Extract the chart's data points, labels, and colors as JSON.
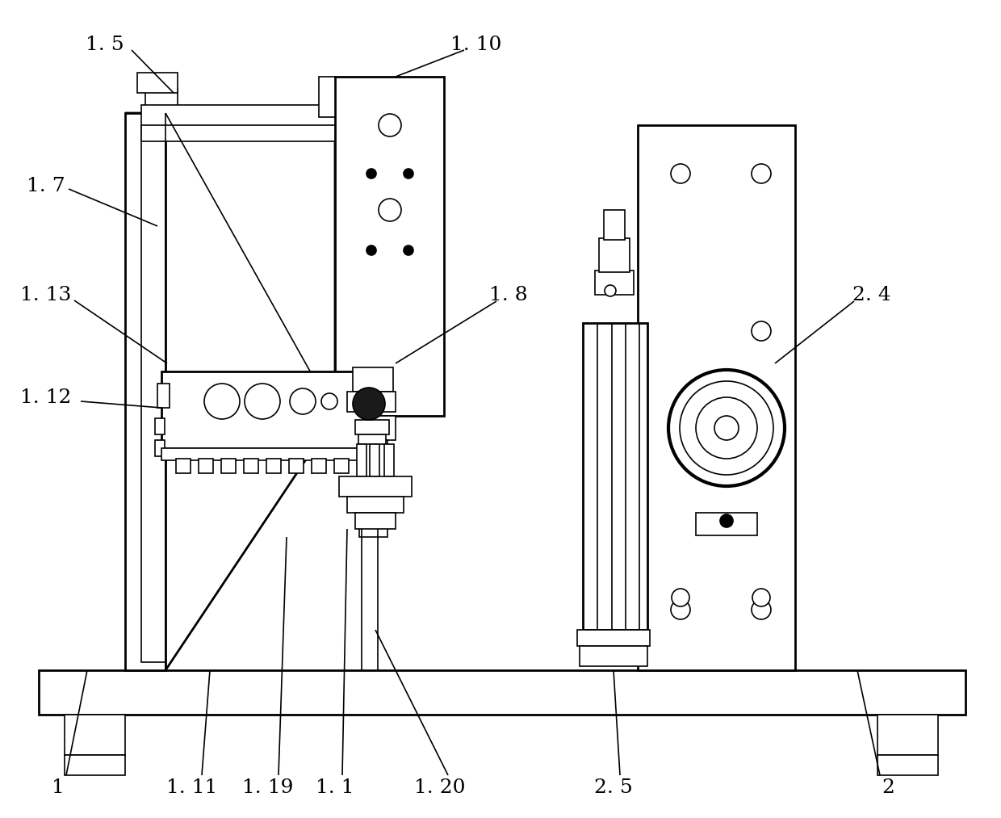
{
  "bg_color": "#ffffff",
  "lc": "#000000",
  "lw": 1.2,
  "lw2": 2.0,
  "lw3": 3.0,
  "figw": 12.4,
  "figh": 10.13,
  "dpi": 100
}
